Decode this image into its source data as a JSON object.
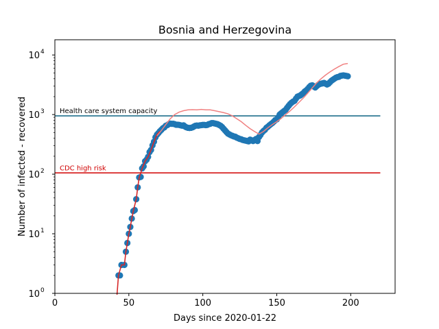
{
  "chart_data": {
    "type": "line",
    "title": "Bosnia and Herzegovina",
    "xlabel": "Days since 2020-01-22",
    "ylabel": "Number of infected - recovered",
    "xlim": [
      0,
      230
    ],
    "ylim": [
      1,
      18000
    ],
    "yscale": "log",
    "grid": false,
    "x_ticks": [
      0,
      50,
      100,
      150,
      200
    ],
    "y_ticks": [
      {
        "value": 1,
        "base": "10",
        "exp": "0"
      },
      {
        "value": 10,
        "base": "10",
        "exp": "1"
      },
      {
        "value": 100,
        "base": "10",
        "exp": "2"
      },
      {
        "value": 1000,
        "base": "10",
        "exp": "3"
      },
      {
        "value": 10000,
        "base": "10",
        "exp": "4"
      }
    ],
    "colors": {
      "scatter": "#1f77b4",
      "fit_line": "#d62728",
      "trend_line": "#f08080",
      "capacity_line": "#1f6f8b",
      "cdc_line": "#d00000"
    },
    "reference_lines": [
      {
        "label": "Health care system capacity",
        "y": 950,
        "x_range": [
          0,
          220
        ],
        "color": "#1f6f8b"
      },
      {
        "label": "CDC high risk",
        "y": 105,
        "x_range": [
          0,
          220
        ],
        "color": "#d00000"
      }
    ],
    "series": [
      {
        "kind": "scatter",
        "color": "#1f77b4",
        "points": [
          [
            43,
            2
          ],
          [
            44,
            2
          ],
          [
            45,
            3
          ],
          [
            47,
            3
          ],
          [
            48,
            5
          ],
          [
            49,
            7
          ],
          [
            50,
            10
          ],
          [
            51,
            13
          ],
          [
            52,
            18
          ],
          [
            53,
            24
          ],
          [
            54,
            25
          ],
          [
            55,
            38
          ],
          [
            56,
            60
          ],
          [
            57,
            88
          ],
          [
            58,
            90
          ],
          [
            59,
            125
          ],
          [
            60,
            135
          ],
          [
            61,
            165
          ],
          [
            62,
            175
          ],
          [
            63,
            195
          ],
          [
            64,
            235
          ],
          [
            65,
            255
          ],
          [
            66,
            305
          ],
          [
            67,
            350
          ],
          [
            68,
            415
          ],
          [
            69,
            460
          ],
          [
            70,
            490
          ],
          [
            71,
            525
          ],
          [
            72,
            555
          ],
          [
            73,
            590
          ],
          [
            74,
            610
          ],
          [
            75,
            650
          ],
          [
            76,
            665
          ],
          [
            77,
            690
          ],
          [
            78,
            705
          ],
          [
            79,
            700
          ],
          [
            80,
            700
          ],
          [
            81,
            690
          ],
          [
            82,
            675
          ],
          [
            83,
            675
          ],
          [
            84,
            670
          ],
          [
            85,
            660
          ],
          [
            86,
            650
          ],
          [
            87,
            660
          ],
          [
            88,
            630
          ],
          [
            89,
            610
          ],
          [
            90,
            600
          ],
          [
            91,
            595
          ],
          [
            92,
            600
          ],
          [
            93,
            610
          ],
          [
            94,
            630
          ],
          [
            95,
            650
          ],
          [
            96,
            655
          ],
          [
            97,
            650
          ],
          [
            98,
            660
          ],
          [
            99,
            665
          ],
          [
            100,
            670
          ],
          [
            101,
            670
          ],
          [
            102,
            665
          ],
          [
            103,
            670
          ],
          [
            104,
            690
          ],
          [
            105,
            700
          ],
          [
            106,
            720
          ],
          [
            107,
            720
          ],
          [
            108,
            710
          ],
          [
            109,
            700
          ],
          [
            110,
            690
          ],
          [
            111,
            670
          ],
          [
            112,
            650
          ],
          [
            113,
            620
          ],
          [
            114,
            580
          ],
          [
            115,
            545
          ],
          [
            116,
            510
          ],
          [
            117,
            480
          ],
          [
            118,
            465
          ],
          [
            119,
            450
          ],
          [
            120,
            440
          ],
          [
            121,
            430
          ],
          [
            122,
            425
          ],
          [
            123,
            410
          ],
          [
            124,
            400
          ],
          [
            125,
            390
          ],
          [
            126,
            385
          ],
          [
            127,
            375
          ],
          [
            128,
            370
          ],
          [
            129,
            365
          ],
          [
            130,
            360
          ],
          [
            131,
            355
          ],
          [
            132,
            380
          ],
          [
            133,
            370
          ],
          [
            134,
            360
          ],
          [
            135,
            375
          ],
          [
            136,
            390
          ],
          [
            137,
            360
          ],
          [
            138,
            420
          ],
          [
            139,
            455
          ],
          [
            140,
            500
          ],
          [
            141,
            530
          ],
          [
            142,
            555
          ],
          [
            143,
            600
          ],
          [
            144,
            625
          ],
          [
            145,
            660
          ],
          [
            146,
            690
          ],
          [
            147,
            720
          ],
          [
            148,
            760
          ],
          [
            149,
            810
          ],
          [
            150,
            830
          ],
          [
            151,
            900
          ],
          [
            152,
            1000
          ],
          [
            153,
            1050
          ],
          [
            154,
            1100
          ],
          [
            155,
            1150
          ],
          [
            156,
            1200
          ],
          [
            157,
            1300
          ],
          [
            158,
            1400
          ],
          [
            159,
            1500
          ],
          [
            160,
            1580
          ],
          [
            161,
            1650
          ],
          [
            162,
            1700
          ],
          [
            163,
            1850
          ],
          [
            164,
            2000
          ],
          [
            165,
            2050
          ],
          [
            166,
            2100
          ],
          [
            167,
            2200
          ],
          [
            168,
            2300
          ],
          [
            169,
            2450
          ],
          [
            170,
            2550
          ],
          [
            171,
            2700
          ],
          [
            172,
            2900
          ],
          [
            173,
            3050
          ],
          [
            174,
            3100
          ],
          [
            175,
            2950
          ],
          [
            176,
            2850
          ],
          [
            177,
            3000
          ],
          [
            178,
            3150
          ],
          [
            179,
            3250
          ],
          [
            180,
            3300
          ],
          [
            181,
            3350
          ],
          [
            182,
            3400
          ],
          [
            183,
            3300
          ],
          [
            184,
            3200
          ],
          [
            185,
            3300
          ],
          [
            186,
            3500
          ],
          [
            187,
            3700
          ],
          [
            188,
            3850
          ],
          [
            189,
            4000
          ],
          [
            190,
            4150
          ],
          [
            191,
            4250
          ],
          [
            192,
            4300
          ],
          [
            193,
            4450
          ],
          [
            194,
            4500
          ],
          [
            195,
            4550
          ],
          [
            196,
            4500
          ],
          [
            197,
            4450
          ],
          [
            198,
            4400
          ]
        ]
      },
      {
        "kind": "line",
        "color": "#d62728",
        "points": [
          [
            42,
            0.8
          ],
          [
            43,
            2
          ],
          [
            45,
            3
          ],
          [
            47,
            3
          ],
          [
            48,
            5
          ],
          [
            49,
            7
          ],
          [
            50,
            10
          ],
          [
            51,
            13
          ],
          [
            52,
            18
          ],
          [
            53,
            24
          ],
          [
            55,
            38
          ],
          [
            56,
            60
          ],
          [
            57,
            88
          ],
          [
            59,
            125
          ],
          [
            61,
            165
          ],
          [
            63,
            195
          ],
          [
            65,
            255
          ],
          [
            67,
            350
          ],
          [
            69,
            460
          ],
          [
            71,
            525
          ]
        ]
      },
      {
        "kind": "line",
        "color": "#f08080",
        "points": [
          [
            69,
            440
          ],
          [
            72,
            540
          ],
          [
            75,
            680
          ],
          [
            78,
            850
          ],
          [
            81,
            1000
          ],
          [
            84,
            1100
          ],
          [
            87,
            1160
          ],
          [
            90,
            1200
          ],
          [
            93,
            1210
          ],
          [
            96,
            1200
          ],
          [
            99,
            1220
          ],
          [
            102,
            1200
          ],
          [
            105,
            1200
          ],
          [
            108,
            1160
          ],
          [
            111,
            1120
          ],
          [
            114,
            1080
          ],
          [
            117,
            1030
          ],
          [
            120,
            950
          ],
          [
            123,
            850
          ],
          [
            126,
            760
          ],
          [
            129,
            660
          ],
          [
            132,
            580
          ],
          [
            135,
            520
          ],
          [
            138,
            470
          ],
          [
            141,
            520
          ],
          [
            144,
            600
          ],
          [
            147,
            680
          ],
          [
            150,
            760
          ],
          [
            153,
            860
          ],
          [
            156,
            1000
          ],
          [
            159,
            1150
          ],
          [
            162,
            1350
          ],
          [
            165,
            1600
          ],
          [
            168,
            1900
          ],
          [
            171,
            2300
          ],
          [
            174,
            2800
          ],
          [
            177,
            3400
          ],
          [
            180,
            4000
          ],
          [
            183,
            4600
          ],
          [
            186,
            5200
          ],
          [
            189,
            5800
          ],
          [
            192,
            6400
          ],
          [
            195,
            7000
          ],
          [
            198,
            7200
          ]
        ]
      }
    ]
  }
}
